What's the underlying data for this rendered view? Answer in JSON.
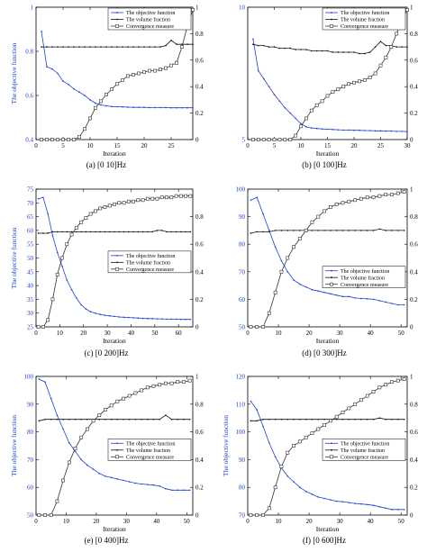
{
  "colors": {
    "objective": "#1f3fd6",
    "volume": "#111111",
    "convergence": "#333333",
    "axis": "#000000",
    "ylabel": "#1f3fd6"
  },
  "legend_labels": [
    "The objective function",
    "The volume fraction",
    "Convergence measure"
  ],
  "chart_data": [
    {
      "type": "line",
      "caption": "(a)  [0 10]Hz",
      "xlabel": "Iteration",
      "ylabel": "The objective function",
      "xlim": [
        0,
        29
      ],
      "xticks": [
        0,
        5,
        10,
        15,
        20,
        25
      ],
      "ylim": [
        0.4,
        1.0
      ],
      "yticks": [
        0.4,
        0.6,
        0.8,
        1.0
      ],
      "ytick_labels": [
        "0.4",
        "0.6",
        "0.8",
        "1"
      ],
      "y2lim": [
        0,
        1
      ],
      "y2ticks": [
        0,
        0.2,
        0.4,
        0.6,
        0.8,
        1
      ],
      "legend_position": "top-right",
      "x": [
        1,
        2,
        3,
        4,
        5,
        6,
        7,
        8,
        9,
        10,
        11,
        12,
        13,
        14,
        15,
        16,
        17,
        18,
        19,
        20,
        21,
        22,
        23,
        24,
        25,
        26,
        27,
        28,
        29
      ],
      "series": [
        {
          "name": "The objective function",
          "axis": "left",
          "marker": "dot",
          "values": [
            0.89,
            0.73,
            0.72,
            0.7,
            0.665,
            0.65,
            0.63,
            0.615,
            0.6,
            0.58,
            0.565,
            0.557,
            0.553,
            0.55,
            0.549,
            0.548,
            0.547,
            0.546,
            0.546,
            0.546,
            0.545,
            0.545,
            0.545,
            0.545,
            0.544,
            0.544,
            0.544,
            0.544,
            0.544
          ]
        },
        {
          "name": "The volume fraction",
          "axis": "right",
          "marker": "dot",
          "values": [
            0.7,
            0.7,
            0.7,
            0.7,
            0.7,
            0.7,
            0.7,
            0.7,
            0.7,
            0.7,
            0.7,
            0.7,
            0.7,
            0.7,
            0.7,
            0.7,
            0.7,
            0.7,
            0.7,
            0.7,
            0.7,
            0.7,
            0.7,
            0.71,
            0.75,
            0.72,
            0.72,
            0.72,
            0.72
          ]
        },
        {
          "name": "Convergence measure",
          "axis": "right",
          "marker": "square",
          "values": [
            0,
            0,
            0,
            0,
            0,
            0,
            0,
            0.02,
            0.08,
            0.16,
            0.24,
            0.29,
            0.34,
            0.38,
            0.42,
            0.45,
            0.48,
            0.49,
            0.5,
            0.51,
            0.52,
            0.52,
            0.53,
            0.54,
            0.56,
            0.58,
            0.7,
            0.86,
            0.98
          ]
        }
      ]
    },
    {
      "type": "line",
      "caption": "(b)  [0 100]Hz",
      "xlabel": "Iteration",
      "ylabel": "",
      "xlim": [
        0,
        30
      ],
      "xticks": [
        0,
        5,
        10,
        15,
        20,
        25,
        30
      ],
      "ylim": [
        5,
        10
      ],
      "yticks": [
        5,
        10
      ],
      "ytick_labels": [
        "5",
        "10"
      ],
      "y2lim": [
        0,
        1
      ],
      "y2ticks": [
        0,
        0.2,
        0.4,
        0.6,
        0.8,
        1
      ],
      "legend_position": "top-right",
      "x": [
        1,
        2,
        3,
        4,
        5,
        6,
        7,
        8,
        9,
        10,
        11,
        12,
        13,
        14,
        15,
        16,
        17,
        18,
        19,
        20,
        21,
        22,
        23,
        24,
        25,
        26,
        27,
        28,
        29,
        30
      ],
      "series": [
        {
          "name": "The objective function",
          "axis": "left",
          "marker": "dot",
          "values": [
            8.8,
            7.6,
            7.3,
            7.0,
            6.7,
            6.45,
            6.2,
            6.0,
            5.8,
            5.6,
            5.48,
            5.44,
            5.42,
            5.4,
            5.39,
            5.38,
            5.37,
            5.36,
            5.36,
            5.35,
            5.35,
            5.34,
            5.34,
            5.33,
            5.33,
            5.32,
            5.32,
            5.31,
            5.31,
            5.3
          ]
        },
        {
          "name": "The volume fraction",
          "axis": "right",
          "marker": "dot",
          "values": [
            0.72,
            0.71,
            0.71,
            0.7,
            0.7,
            0.69,
            0.69,
            0.69,
            0.68,
            0.68,
            0.68,
            0.67,
            0.67,
            0.67,
            0.67,
            0.66,
            0.66,
            0.66,
            0.66,
            0.66,
            0.65,
            0.65,
            0.66,
            0.7,
            0.74,
            0.71,
            0.71,
            0.7,
            0.7,
            0.7
          ]
        },
        {
          "name": "Convergence measure",
          "axis": "right",
          "marker": "square",
          "values": [
            0,
            0,
            0,
            0,
            0,
            0,
            0,
            0,
            0.03,
            0.1,
            0.16,
            0.22,
            0.26,
            0.29,
            0.33,
            0.36,
            0.38,
            0.4,
            0.42,
            0.43,
            0.44,
            0.45,
            0.47,
            0.5,
            0.56,
            0.62,
            0.7,
            0.8,
            0.9,
            0.98
          ]
        }
      ]
    },
    {
      "type": "line",
      "caption": "(c)  [0 200]Hz",
      "xlabel": "Iteration",
      "ylabel": "The objective function",
      "xlim": [
        0,
        66
      ],
      "xticks": [
        0,
        10,
        20,
        30,
        40,
        50,
        60
      ],
      "ylim": [
        25,
        75
      ],
      "yticks": [
        25,
        30,
        35,
        40,
        45,
        50,
        55,
        60,
        65,
        70,
        75
      ],
      "ytick_labels": [
        "25",
        "30",
        "35",
        "40",
        "45",
        "50",
        "55",
        "60",
        "65",
        "70",
        "75"
      ],
      "y2lim": [
        0,
        1
      ],
      "y2ticks": [
        0,
        0.2,
        0.4,
        0.6,
        0.8
      ],
      "legend_position": "center-right",
      "x": [
        1,
        3,
        5,
        7,
        9,
        11,
        13,
        15,
        17,
        19,
        21,
        23,
        25,
        27,
        29,
        31,
        33,
        35,
        37,
        39,
        41,
        43,
        45,
        47,
        49,
        51,
        53,
        55,
        57,
        59,
        61,
        63,
        65
      ],
      "series": [
        {
          "name": "The objective function",
          "axis": "left",
          "marker": "dot",
          "values": [
            71.5,
            72,
            66,
            58,
            52,
            47,
            42,
            38.5,
            35.5,
            33,
            31.5,
            30.5,
            30,
            29.5,
            29.2,
            29,
            28.8,
            28.6,
            28.5,
            28.4,
            28.3,
            28.2,
            28.1,
            28,
            28,
            27.9,
            27.9,
            27.8,
            27.8,
            27.8,
            27.7,
            27.7,
            27.7
          ]
        },
        {
          "name": "The volume fraction",
          "axis": "right",
          "marker": "dot",
          "values": [
            0.68,
            0.68,
            0.68,
            0.69,
            0.69,
            0.69,
            0.69,
            0.69,
            0.69,
            0.69,
            0.69,
            0.69,
            0.69,
            0.69,
            0.69,
            0.69,
            0.69,
            0.69,
            0.69,
            0.69,
            0.69,
            0.69,
            0.69,
            0.69,
            0.69,
            0.7,
            0.7,
            0.69,
            0.69,
            0.69,
            0.69,
            0.69,
            0.69
          ]
        },
        {
          "name": "Convergence measure",
          "axis": "right",
          "marker": "square",
          "values": [
            0,
            0,
            0.05,
            0.2,
            0.38,
            0.5,
            0.6,
            0.67,
            0.72,
            0.76,
            0.79,
            0.82,
            0.84,
            0.86,
            0.87,
            0.88,
            0.89,
            0.9,
            0.9,
            0.91,
            0.91,
            0.92,
            0.92,
            0.93,
            0.93,
            0.93,
            0.94,
            0.94,
            0.94,
            0.95,
            0.95,
            0.95,
            0.95
          ]
        }
      ]
    },
    {
      "type": "line",
      "caption": "(d)  [0 300]Hz",
      "xlabel": "Iteration",
      "ylabel": "",
      "xlim": [
        0,
        52
      ],
      "xticks": [
        0,
        10,
        20,
        30,
        40,
        50
      ],
      "ylim": [
        50,
        100
      ],
      "yticks": [
        50,
        60,
        70,
        80,
        90,
        100
      ],
      "ytick_labels": [
        "50",
        "60",
        "70",
        "80",
        "90",
        "100"
      ],
      "y2lim": [
        0,
        1
      ],
      "y2ticks": [
        0,
        0.2,
        0.4,
        0.6,
        0.8,
        1
      ],
      "legend_position": "lower-right",
      "x": [
        1,
        3,
        5,
        7,
        9,
        11,
        13,
        15,
        17,
        19,
        21,
        23,
        25,
        27,
        29,
        31,
        33,
        35,
        37,
        39,
        41,
        43,
        45,
        47,
        49,
        51
      ],
      "series": [
        {
          "name": "The objective function",
          "axis": "left",
          "marker": "dot",
          "values": [
            96,
            97,
            91,
            85,
            79,
            74,
            70,
            67,
            65.5,
            64.5,
            63.5,
            63,
            62.5,
            62,
            61.5,
            61,
            61,
            60.5,
            60.3,
            60.2,
            60,
            59.5,
            59,
            58.5,
            58,
            58
          ]
        },
        {
          "name": "The volume fraction",
          "axis": "right",
          "marker": "dot",
          "values": [
            0.68,
            0.69,
            0.69,
            0.69,
            0.7,
            0.7,
            0.7,
            0.7,
            0.7,
            0.7,
            0.7,
            0.7,
            0.7,
            0.7,
            0.7,
            0.7,
            0.7,
            0.7,
            0.7,
            0.7,
            0.7,
            0.71,
            0.7,
            0.7,
            0.7,
            0.7
          ]
        },
        {
          "name": "Convergence measure",
          "axis": "right",
          "marker": "square",
          "values": [
            0,
            0,
            0,
            0.1,
            0.25,
            0.4,
            0.5,
            0.58,
            0.64,
            0.7,
            0.76,
            0.8,
            0.84,
            0.87,
            0.89,
            0.9,
            0.91,
            0.92,
            0.93,
            0.94,
            0.94,
            0.95,
            0.96,
            0.96,
            0.97,
            0.98
          ]
        }
      ]
    },
    {
      "type": "line",
      "caption": "(e)  [0 400]Hz",
      "xlabel": "Iteration",
      "ylabel": "The objective function",
      "xlim": [
        0,
        52
      ],
      "xticks": [
        0,
        10,
        20,
        30,
        40,
        50
      ],
      "ylim": [
        50,
        100
      ],
      "yticks": [
        50,
        60,
        70,
        80,
        90,
        100
      ],
      "ytick_labels": [
        "50",
        "60",
        "70",
        "80",
        "90",
        "100"
      ],
      "y2lim": [
        0,
        1
      ],
      "y2ticks": [
        0,
        0.2,
        0.4,
        0.6,
        0.8,
        1
      ],
      "legend_position": "center-right",
      "x": [
        1,
        3,
        5,
        7,
        9,
        11,
        13,
        15,
        17,
        19,
        21,
        23,
        25,
        27,
        29,
        31,
        33,
        35,
        37,
        39,
        41,
        43,
        45,
        47,
        49,
        51
      ],
      "series": [
        {
          "name": "The objective function",
          "axis": "left",
          "marker": "dot",
          "values": [
            99,
            98,
            92,
            86,
            81,
            76,
            73,
            70,
            68,
            66.5,
            65,
            64,
            63.5,
            63,
            62.5,
            62,
            61.5,
            61.2,
            61,
            60.8,
            60.5,
            59.5,
            59,
            59,
            59,
            59
          ]
        },
        {
          "name": "The volume fraction",
          "axis": "right",
          "marker": "dot",
          "values": [
            0.68,
            0.69,
            0.69,
            0.69,
            0.69,
            0.69,
            0.69,
            0.69,
            0.69,
            0.69,
            0.69,
            0.69,
            0.69,
            0.69,
            0.69,
            0.69,
            0.69,
            0.69,
            0.69,
            0.69,
            0.69,
            0.72,
            0.69,
            0.69,
            0.69,
            0.69
          ]
        },
        {
          "name": "Convergence measure",
          "axis": "right",
          "marker": "square",
          "values": [
            0,
            0,
            0,
            0.1,
            0.25,
            0.38,
            0.48,
            0.56,
            0.62,
            0.68,
            0.72,
            0.76,
            0.79,
            0.82,
            0.84,
            0.86,
            0.88,
            0.9,
            0.92,
            0.93,
            0.94,
            0.95,
            0.95,
            0.96,
            0.96,
            0.97
          ]
        }
      ]
    },
    {
      "type": "line",
      "caption": "(f)  [0 600]Hz",
      "xlabel": "Iteration",
      "ylabel": "The objective function",
      "xlim": [
        0,
        52
      ],
      "xticks": [
        0,
        10,
        20,
        30,
        40,
        50
      ],
      "ylim": [
        70,
        120
      ],
      "yticks": [
        70,
        80,
        90,
        100,
        110,
        120
      ],
      "ytick_labels": [
        "70",
        "80",
        "90",
        "100",
        "110",
        "120"
      ],
      "y2lim": [
        0,
        1
      ],
      "y2ticks": [
        0,
        0.2,
        0.4,
        0.6,
        0.8,
        1
      ],
      "legend_position": "center-right",
      "x": [
        1,
        3,
        5,
        7,
        9,
        11,
        13,
        15,
        17,
        19,
        21,
        23,
        25,
        27,
        29,
        31,
        33,
        35,
        37,
        39,
        41,
        43,
        45,
        47,
        49,
        51
      ],
      "series": [
        {
          "name": "The objective function",
          "axis": "left",
          "marker": "dot",
          "values": [
            111,
            108,
            102,
            96,
            91,
            87,
            84,
            82,
            80,
            78.5,
            77.5,
            76.5,
            76,
            75.5,
            75,
            74.8,
            74.5,
            74.2,
            74,
            73.8,
            73.5,
            73,
            72.5,
            72,
            72,
            72
          ]
        },
        {
          "name": "The volume fraction",
          "axis": "right",
          "marker": "dot",
          "values": [
            0.68,
            0.68,
            0.69,
            0.69,
            0.69,
            0.69,
            0.69,
            0.69,
            0.69,
            0.69,
            0.69,
            0.69,
            0.69,
            0.69,
            0.69,
            0.69,
            0.69,
            0.69,
            0.69,
            0.69,
            0.69,
            0.7,
            0.69,
            0.69,
            0.69,
            0.69
          ]
        },
        {
          "name": "Convergence measure",
          "axis": "right",
          "marker": "square",
          "values": [
            0,
            0,
            0,
            0.05,
            0.2,
            0.35,
            0.45,
            0.5,
            0.53,
            0.56,
            0.59,
            0.62,
            0.65,
            0.68,
            0.71,
            0.74,
            0.77,
            0.8,
            0.83,
            0.86,
            0.89,
            0.92,
            0.94,
            0.96,
            0.97,
            0.98
          ]
        }
      ]
    }
  ]
}
